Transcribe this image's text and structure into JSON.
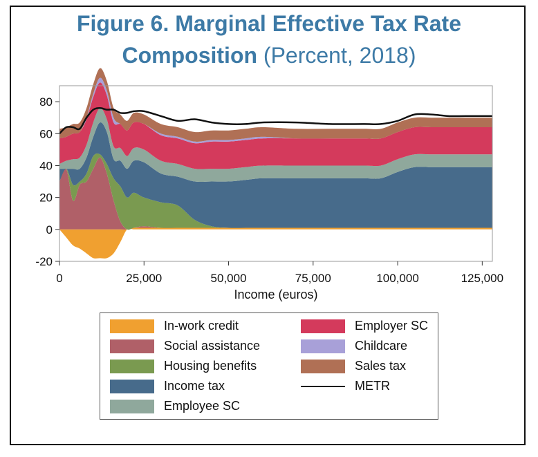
{
  "title": {
    "line1": "Figure 6. Marginal Effective Tax Rate",
    "line2_bold": "Composition",
    "line2_light": " (Percent, 2018)"
  },
  "chart_data": {
    "type": "area",
    "title": "Figure 6. Marginal Effective Tax Rate Composition (Percent, 2018)",
    "xlabel": "Income (euros)",
    "ylabel": "",
    "xlim": [
      0,
      128000
    ],
    "ylim": [
      -20,
      90
    ],
    "xticks": [
      0,
      25000,
      50000,
      75000,
      100000,
      125000
    ],
    "xtick_labels": [
      "0",
      "25,000",
      "50,000",
      "75,000",
      "100,000",
      "125,000"
    ],
    "yticks": [
      -20,
      0,
      20,
      40,
      60,
      80
    ],
    "ytick_labels": [
      "-20",
      "0",
      "20",
      "40",
      "60",
      "80"
    ],
    "grid": false,
    "legend_position": "bottom",
    "x": [
      0,
      2000,
      4000,
      6000,
      8000,
      10000,
      12000,
      14000,
      16000,
      18000,
      20000,
      22000,
      25000,
      30000,
      35000,
      40000,
      45000,
      50000,
      55000,
      60000,
      70000,
      80000,
      90000,
      95000,
      100000,
      105000,
      110000,
      115000,
      120000,
      125000,
      128000
    ],
    "series": [
      {
        "name": "In-work credit",
        "color": "#f0a030",
        "values": [
          0,
          -5,
          -10,
          -12,
          -15,
          -18,
          -18,
          -18,
          -15,
          -8,
          0,
          1,
          1,
          1,
          1,
          1,
          1,
          1,
          1,
          1,
          1,
          1,
          1,
          1,
          1,
          1,
          1,
          1,
          1,
          1,
          1
        ]
      },
      {
        "name": "Social assistance",
        "color": "#b06068",
        "values": [
          30,
          38,
          18,
          28,
          30,
          38,
          45,
          35,
          18,
          5,
          0,
          0,
          1,
          0,
          0,
          0,
          0,
          0,
          0,
          0,
          0,
          0,
          0,
          0,
          0,
          0,
          0,
          0,
          0,
          0,
          0
        ]
      },
      {
        "name": "Housing benefits",
        "color": "#7a9a50",
        "values": [
          0,
          0,
          10,
          2,
          5,
          8,
          2,
          6,
          14,
          22,
          20,
          22,
          18,
          16,
          14,
          5,
          1,
          0,
          0,
          0,
          0,
          0,
          0,
          0,
          0,
          0,
          0,
          0,
          0,
          0,
          0
        ]
      },
      {
        "name": "Income tax",
        "color": "#476b8b",
        "values": [
          8,
          0,
          10,
          8,
          10,
          12,
          20,
          20,
          12,
          16,
          18,
          20,
          22,
          18,
          18,
          24,
          28,
          29,
          30,
          31,
          31,
          31,
          31,
          31,
          35,
          38,
          38,
          38,
          38,
          38,
          38
        ]
      },
      {
        "name": "Employee SC",
        "color": "#8fa89c",
        "values": [
          3,
          5,
          6,
          7,
          8,
          9,
          9,
          8,
          8,
          8,
          8,
          8,
          8,
          8,
          8,
          8,
          8,
          8,
          8,
          8,
          8,
          8,
          8,
          8,
          8,
          8,
          8,
          8,
          8,
          8,
          8
        ]
      },
      {
        "name": "Employer SC",
        "color": "#d43a5c",
        "values": [
          16,
          15,
          16,
          16,
          16,
          16,
          16,
          15,
          15,
          15,
          16,
          16,
          16,
          16,
          16,
          16,
          17,
          17,
          17,
          17,
          17,
          17,
          17,
          17,
          17,
          17,
          17,
          17,
          17,
          17,
          17
        ]
      },
      {
        "name": "Childcare",
        "color": "#a8a0d8",
        "values": [
          0,
          0,
          0,
          0,
          1,
          2,
          3,
          3,
          3,
          0,
          0,
          0,
          0,
          1,
          1,
          1,
          1,
          1,
          1,
          1,
          0,
          0,
          0,
          0,
          0,
          0,
          0,
          0,
          0,
          0,
          0
        ]
      },
      {
        "name": "Sales tax",
        "color": "#b07055",
        "values": [
          6,
          6,
          6,
          6,
          6,
          6,
          6,
          6,
          6,
          6,
          6,
          6,
          6,
          6,
          6,
          6,
          6,
          6,
          6,
          6,
          6,
          6,
          6,
          6,
          6,
          6,
          6,
          6,
          6,
          6,
          6
        ]
      },
      {
        "name": "METR",
        "color": "#111111",
        "line": true,
        "values": [
          60,
          64,
          64,
          63,
          70,
          75,
          76,
          75,
          75,
          73,
          73,
          74,
          74,
          71,
          68,
          69,
          67,
          66,
          66,
          67,
          67,
          66,
          66,
          66,
          68,
          72,
          72,
          71,
          71,
          71,
          71
        ]
      }
    ]
  },
  "legend": {
    "left": [
      {
        "label": "In-work credit",
        "color": "#f0a030"
      },
      {
        "label": "Social assistance",
        "color": "#b06068"
      },
      {
        "label": "Housing benefits",
        "color": "#7a9a50"
      },
      {
        "label": "Income tax",
        "color": "#476b8b"
      },
      {
        "label": "Employee SC",
        "color": "#8fa89c"
      }
    ],
    "right": [
      {
        "label": "Employer SC",
        "color": "#d43a5c"
      },
      {
        "label": "Childcare",
        "color": "#a8a0d8"
      },
      {
        "label": "Sales tax",
        "color": "#b07055"
      },
      {
        "label": "METR",
        "color": "#111111",
        "line": true
      }
    ]
  }
}
